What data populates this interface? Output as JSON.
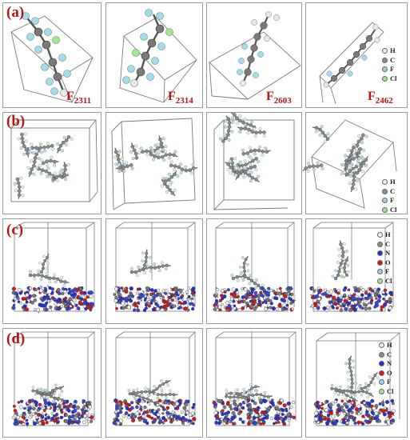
{
  "rows": [
    {
      "label": "(a)",
      "subs": [
        "2311",
        "2314",
        "2603",
        "2462"
      ],
      "prefix": "F"
    },
    {
      "label": "(b)"
    },
    {
      "label": "(c)"
    },
    {
      "label": "(d)"
    }
  ],
  "legend_ab": [
    {
      "sym": "H",
      "color": "#f4f4f4"
    },
    {
      "sym": "C",
      "color": "#8c8c8c"
    },
    {
      "sym": "F",
      "color": "#9fd3e0"
    },
    {
      "sym": "Cl",
      "color": "#a8e29a"
    }
  ],
  "legend_cd": [
    {
      "sym": "H",
      "color": "#f4f4f4"
    },
    {
      "sym": "C",
      "color": "#8c8c8c"
    },
    {
      "sym": "N",
      "color": "#2633c9"
    },
    {
      "sym": "O",
      "color": "#d21a1a"
    },
    {
      "sym": "F",
      "color": "#9fd3e0"
    },
    {
      "sym": "Cl",
      "color": "#a8e29a"
    }
  ]
}
